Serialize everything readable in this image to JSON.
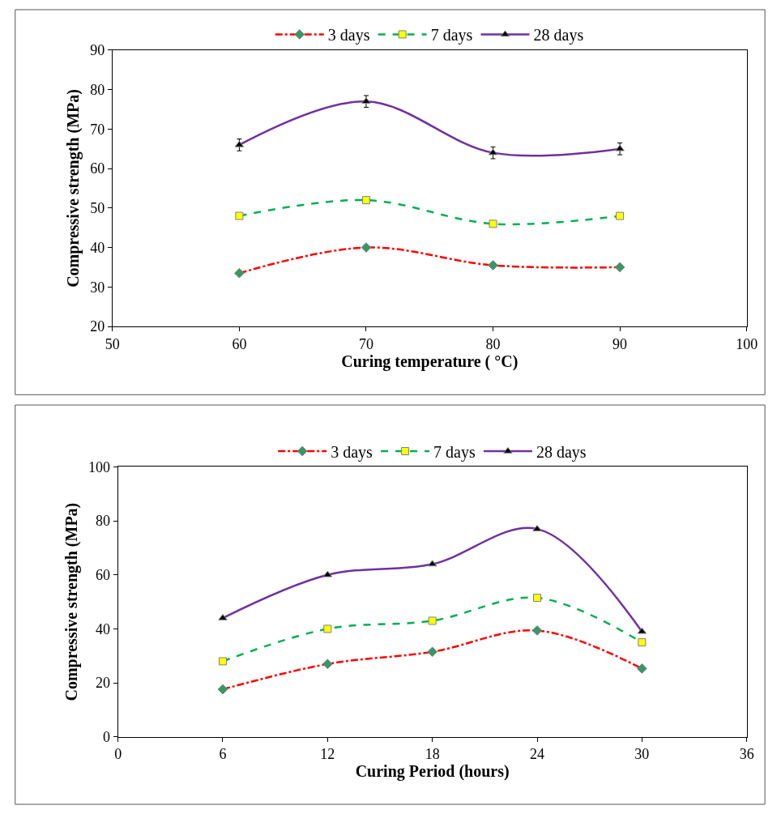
{
  "chart_data": [
    {
      "type": "line",
      "xlabel": "Curing temperature ( °C)",
      "ylabel": "Compressive strength (MPa)",
      "x": [
        60,
        70,
        80,
        90
      ],
      "xlim": [
        50,
        100
      ],
      "xticks": [
        50,
        60,
        70,
        80,
        90,
        100
      ],
      "ylim": [
        20,
        90
      ],
      "yticks": [
        20,
        30,
        40,
        50,
        60,
        70,
        80,
        90
      ],
      "legend": "top",
      "series": [
        {
          "name": "3 days",
          "color": "#ff0000",
          "colors": [
            "#339966",
            "#339966",
            "#339966",
            "#339966"
          ],
          "marker": "diamond",
          "line_style": "dashdot",
          "values": [
            33.5,
            40,
            35.5,
            35
          ]
        },
        {
          "name": "7 days",
          "color": "#00b050",
          "colors": [
            "#ffff00",
            "#ffff00",
            "#ffff00",
            "#ffff00"
          ],
          "marker": "square",
          "line_style": "dashed",
          "values": [
            48,
            52,
            46,
            48
          ]
        },
        {
          "name": "28 days",
          "color": "#7030a0",
          "colors": [
            "#000000",
            "#000000",
            "#000000",
            "#000000"
          ],
          "marker": "triangle",
          "line_style": "solid",
          "values": [
            66,
            77,
            64,
            65
          ],
          "errors": [
            1.5,
            1.5,
            1.5,
            1.5
          ]
        }
      ]
    },
    {
      "type": "line",
      "xlabel": "Curing Period (hours)",
      "ylabel": "Compressive strength (MPa)",
      "x": [
        6,
        12,
        18,
        24,
        30
      ],
      "xlim": [
        0,
        36
      ],
      "xticks": [
        0,
        6,
        12,
        18,
        24,
        30,
        36
      ],
      "ylim": [
        0,
        100
      ],
      "yticks": [
        0,
        20,
        40,
        60,
        80,
        100
      ],
      "legend": "top",
      "series": [
        {
          "name": "3 days",
          "color": "#ff0000",
          "colors": [
            "#339966",
            "#339966",
            "#339966",
            "#339966",
            "#339966"
          ],
          "marker": "diamond",
          "line_style": "dashdot",
          "values": [
            17.6,
            27,
            31.5,
            39.4,
            25.3
          ]
        },
        {
          "name": "7 days",
          "color": "#00b050",
          "colors": [
            "#ffff00",
            "#ffff00",
            "#ffff00",
            "#ffff00",
            "#ffff00"
          ],
          "marker": "square",
          "line_style": "dashed",
          "values": [
            28,
            40,
            43,
            51.5,
            35
          ]
        },
        {
          "name": "28 days",
          "color": "#7030a0",
          "colors": [
            "#000000",
            "#000000",
            "#000000",
            "#000000",
            "#000000"
          ],
          "marker": "triangle",
          "line_style": "solid",
          "values": [
            44,
            60,
            64,
            77,
            39
          ]
        }
      ]
    }
  ]
}
